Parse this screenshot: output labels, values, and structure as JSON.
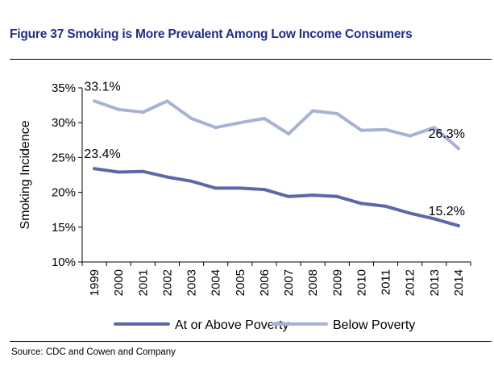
{
  "header": {
    "title": "Figure 37 Smoking is More Prevalent Among Low Income Consumers"
  },
  "footer": {
    "source": "Source: CDC and Cowen and Company"
  },
  "colors": {
    "title": "#1f2f86",
    "series_at_or_above": "#5b6aa6",
    "series_below": "#a7b2d6"
  },
  "chart_data": {
    "type": "line",
    "title": "",
    "xlabel": "",
    "ylabel": "Smoking Incidence",
    "x": [
      "1999",
      "2000",
      "2001",
      "2002",
      "2003",
      "2004",
      "2005",
      "2006",
      "2007",
      "2008",
      "2009",
      "2010",
      "2011",
      "2012",
      "2013",
      "2014"
    ],
    "ylim": [
      10,
      35
    ],
    "yticks": [
      "10%",
      "15%",
      "20%",
      "25%",
      "30%",
      "35%"
    ],
    "ytick_values": [
      10,
      15,
      20,
      25,
      30,
      35
    ],
    "grid": false,
    "legend_position": "bottom",
    "series": [
      {
        "name": "At or Above Poverty",
        "color": "#5b6aa6",
        "values": [
          23.4,
          22.9,
          23.0,
          22.2,
          21.6,
          20.6,
          20.6,
          20.4,
          19.4,
          19.6,
          19.4,
          18.4,
          18.0,
          17.0,
          16.2,
          15.2
        ]
      },
      {
        "name": "Below Poverty",
        "color": "#a7b2d6",
        "values": [
          33.1,
          31.9,
          31.5,
          33.1,
          30.6,
          29.3,
          30.0,
          30.6,
          28.4,
          31.7,
          31.3,
          28.9,
          29.0,
          28.1,
          29.3,
          26.3
        ]
      }
    ],
    "data_labels": [
      {
        "text": "33.1%",
        "series": 1,
        "index": 0
      },
      {
        "text": "23.4%",
        "series": 0,
        "index": 0
      },
      {
        "text": "26.3%",
        "series": 1,
        "index": 15
      },
      {
        "text": "15.2%",
        "series": 0,
        "index": 15
      }
    ]
  }
}
